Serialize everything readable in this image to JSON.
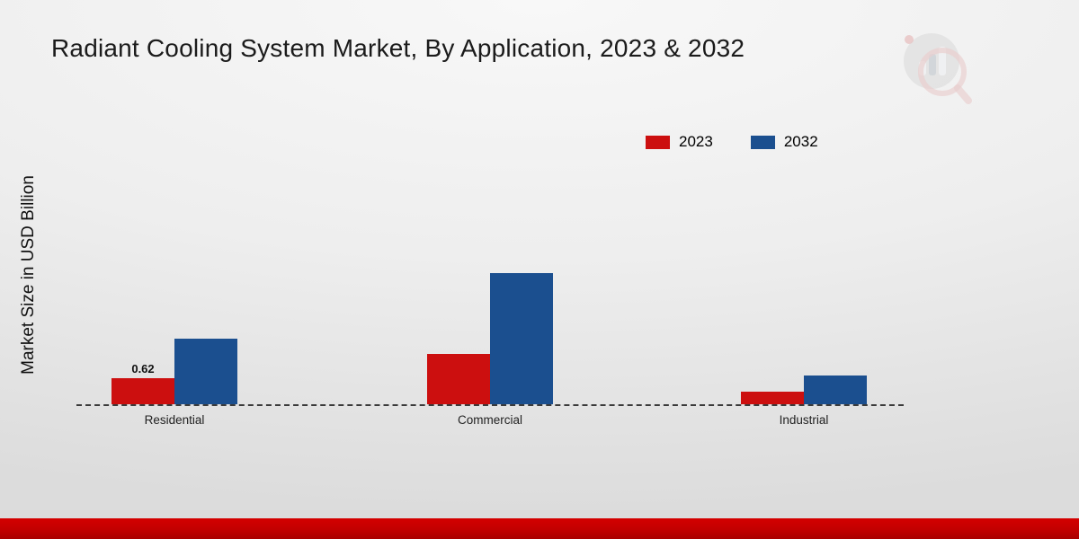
{
  "title": "Radiant Cooling System Market, By Application, 2023 & 2032",
  "ylabel": "Market Size in USD Billion",
  "chart_data": {
    "type": "bar",
    "title": "Radiant Cooling System Market, By Application, 2023 & 2032",
    "xlabel": "",
    "ylabel": "Market Size in USD Billion",
    "categories": [
      "Residential",
      "Commercial",
      "Industrial"
    ],
    "series": [
      {
        "name": "2023",
        "color": "#cc0f0f",
        "values": [
          0.62,
          1.2,
          0.3
        ]
      },
      {
        "name": "2032",
        "color": "#1b4f8f",
        "values": [
          1.55,
          3.1,
          0.68
        ]
      }
    ],
    "data_labels": [
      {
        "category": "Residential",
        "series": "2023",
        "text": "0.62"
      }
    ],
    "ylim": [
      0,
      3.5
    ],
    "grid": false,
    "legend_position": "top-right",
    "baseline_style": "dashed"
  },
  "logo": {
    "name": "market-research-watermark"
  }
}
